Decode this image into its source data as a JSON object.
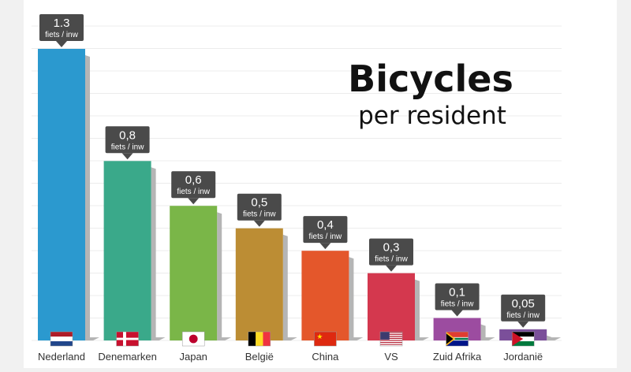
{
  "chart_data": {
    "type": "bar",
    "title": "Bicycles",
    "subtitle": "per resident",
    "categories": [
      "Nederland",
      "Denemarken",
      "Japan",
      "België",
      "China",
      "VS",
      "Zuid Afrika",
      "Jordanië"
    ],
    "values": [
      1.3,
      0.8,
      0.6,
      0.5,
      0.4,
      0.3,
      0.1,
      0.05
    ],
    "value_labels": [
      "1.3",
      "0,8",
      "0,6",
      "0,5",
      "0,4",
      "0,3",
      "0,1",
      "0,05"
    ],
    "unit_label": "fiets / inw",
    "bar_colors": [
      "#2b99cf",
      "#3aa98a",
      "#7ab648",
      "#bc8d34",
      "#e4572b",
      "#d4384e",
      "#9c4ca0",
      "#7b4f9a"
    ],
    "flags": [
      "flag-netherlands",
      "flag-denmark",
      "flag-japan",
      "flag-belgium",
      "flag-china",
      "flag-usa",
      "flag-south-africa",
      "flag-jordan"
    ],
    "ylim": [
      0,
      1.3
    ],
    "grid": true,
    "xlabel": "",
    "ylabel": ""
  }
}
